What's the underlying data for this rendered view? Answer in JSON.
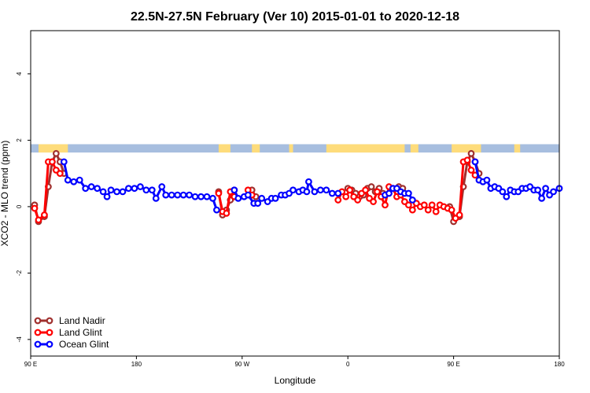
{
  "chart_data": {
    "type": "line",
    "title": "22.5N-27.5N February (Ver 10)   2015-01-01 to 2020-12-18",
    "xlabel": "Longitude",
    "ylabel": "XCO2 - MLO trend (ppm)",
    "xlim": [
      -90,
      180
    ],
    "ylim": [
      -4.5,
      5.3
    ],
    "grid": false,
    "legend_position": "bottom-left",
    "x_ticks": [
      {
        "value": -90,
        "label": "90 E"
      },
      {
        "value": -36,
        "label": "180"
      },
      {
        "value": 18,
        "label": "90 W"
      },
      {
        "value": 72,
        "label": "0"
      },
      {
        "value": 126,
        "label": "90 E"
      },
      {
        "value": 180,
        "label": "180"
      }
    ],
    "y_ticks": [
      {
        "value": -4,
        "label": "-4"
      },
      {
        "value": -2,
        "label": "-2"
      },
      {
        "value": 0,
        "label": "0"
      },
      {
        "value": 2,
        "label": "2"
      },
      {
        "value": 4,
        "label": "4"
      }
    ],
    "map_strip": {
      "y_range": [
        1.63,
        1.88
      ],
      "ocean_color": "#a7bedf",
      "land_color": "#fedc7b",
      "land_x_ranges": [
        [
          -86,
          -71
        ],
        [
          6,
          12
        ],
        [
          23,
          27
        ],
        [
          42,
          44
        ],
        [
          61,
          101
        ],
        [
          104,
          108
        ],
        [
          125,
          140
        ],
        [
          157,
          160
        ]
      ]
    },
    "series": [
      {
        "name": "Land Nadir",
        "color": "#a0302e",
        "points": [
          [
            -88,
            0.05
          ],
          [
            -86,
            -0.45
          ],
          [
            -83,
            -0.3
          ],
          [
            -81,
            0.6
          ],
          [
            -79,
            1.35
          ],
          [
            -77,
            1.6
          ],
          [
            -75,
            1.35
          ],
          [
            -73,
            1.0
          ],
          [
            6,
            0.45
          ],
          [
            8,
            -0.25
          ],
          [
            10,
            -0.1
          ],
          [
            12,
            0.2
          ],
          [
            14,
            0.5
          ],
          [
            23,
            0.5
          ],
          [
            25,
            0.3
          ],
          [
            72,
            0.55
          ],
          [
            74,
            0.5
          ],
          [
            76,
            0.4
          ],
          [
            78,
            0.3
          ],
          [
            80,
            0.35
          ],
          [
            82,
            0.55
          ],
          [
            84,
            0.6
          ],
          [
            86,
            0.45
          ],
          [
            88,
            0.55
          ],
          [
            90,
            0.4
          ],
          [
            98,
            0.6
          ],
          [
            100,
            0.55
          ],
          [
            124,
            0.0
          ],
          [
            126,
            -0.45
          ],
          [
            129,
            -0.3
          ],
          [
            131,
            0.6
          ],
          [
            133,
            1.35
          ],
          [
            135,
            1.6
          ],
          [
            137,
            1.35
          ],
          [
            139,
            1.0
          ]
        ]
      },
      {
        "name": "Land Glint",
        "color": "#ff0000",
        "points": [
          [
            -88,
            -0.05
          ],
          [
            -86,
            -0.4
          ],
          [
            -83,
            -0.25
          ],
          [
            -81,
            1.35
          ],
          [
            -79,
            1.35
          ],
          [
            -77,
            1.1
          ],
          [
            -75,
            1.0
          ],
          [
            6,
            0.4
          ],
          [
            8,
            -0.15
          ],
          [
            10,
            -0.2
          ],
          [
            12,
            0.45
          ],
          [
            14,
            0.3
          ],
          [
            21,
            0.5
          ],
          [
            23,
            0.35
          ],
          [
            67,
            0.2
          ],
          [
            69,
            0.45
          ],
          [
            71,
            0.3
          ],
          [
            73,
            0.5
          ],
          [
            75,
            0.3
          ],
          [
            77,
            0.2
          ],
          [
            79,
            0.4
          ],
          [
            81,
            0.5
          ],
          [
            83,
            0.25
          ],
          [
            85,
            0.15
          ],
          [
            87,
            0.45
          ],
          [
            89,
            0.3
          ],
          [
            91,
            0.05
          ],
          [
            93,
            0.6
          ],
          [
            95,
            0.55
          ],
          [
            97,
            0.3
          ],
          [
            99,
            0.35
          ],
          [
            101,
            0.15
          ],
          [
            103,
            0.05
          ],
          [
            105,
            -0.1
          ],
          [
            107,
            0.1
          ],
          [
            109,
            0.0
          ],
          [
            111,
            0.05
          ],
          [
            113,
            -0.1
          ],
          [
            115,
            0.05
          ],
          [
            117,
            -0.15
          ],
          [
            119,
            0.05
          ],
          [
            121,
            0.0
          ],
          [
            123,
            -0.05
          ],
          [
            125,
            -0.1
          ],
          [
            127,
            -0.35
          ],
          [
            129,
            -0.25
          ],
          [
            131,
            1.35
          ],
          [
            133,
            1.4
          ],
          [
            135,
            1.1
          ],
          [
            137,
            0.95
          ]
        ]
      },
      {
        "name": "Ocean Glint",
        "color": "#0000ff",
        "points": [
          [
            -73,
            1.35
          ],
          [
            -71,
            0.8
          ],
          [
            -68,
            0.75
          ],
          [
            -65,
            0.8
          ],
          [
            -62,
            0.55
          ],
          [
            -59,
            0.6
          ],
          [
            -56,
            0.55
          ],
          [
            -53,
            0.45
          ],
          [
            -51,
            0.3
          ],
          [
            -49,
            0.5
          ],
          [
            -46,
            0.45
          ],
          [
            -43,
            0.45
          ],
          [
            -40,
            0.55
          ],
          [
            -37,
            0.55
          ],
          [
            -34,
            0.6
          ],
          [
            -31,
            0.5
          ],
          [
            -28,
            0.5
          ],
          [
            -26,
            0.25
          ],
          [
            -23,
            0.6
          ],
          [
            -21,
            0.35
          ],
          [
            -18,
            0.35
          ],
          [
            -15,
            0.35
          ],
          [
            -12,
            0.35
          ],
          [
            -9,
            0.35
          ],
          [
            -6,
            0.3
          ],
          [
            -3,
            0.3
          ],
          [
            0,
            0.3
          ],
          [
            3,
            0.25
          ],
          [
            5,
            -0.1
          ],
          [
            14,
            0.5
          ],
          [
            16,
            0.25
          ],
          [
            19,
            0.3
          ],
          [
            21,
            0.35
          ],
          [
            24,
            0.1
          ],
          [
            26,
            0.1
          ],
          [
            28,
            0.25
          ],
          [
            31,
            0.15
          ],
          [
            33,
            0.25
          ],
          [
            35,
            0.25
          ],
          [
            38,
            0.35
          ],
          [
            40,
            0.35
          ],
          [
            42,
            0.4
          ],
          [
            44,
            0.5
          ],
          [
            47,
            0.45
          ],
          [
            49,
            0.5
          ],
          [
            51,
            0.45
          ],
          [
            52,
            0.75
          ],
          [
            55,
            0.45
          ],
          [
            58,
            0.5
          ],
          [
            61,
            0.5
          ],
          [
            64,
            0.4
          ],
          [
            67,
            0.4
          ],
          [
            91,
            0.35
          ],
          [
            93,
            0.4
          ],
          [
            95,
            0.55
          ],
          [
            97,
            0.55
          ],
          [
            99,
            0.45
          ],
          [
            101,
            0.4
          ],
          [
            103,
            0.4
          ],
          [
            105,
            0.2
          ],
          [
            137,
            1.35
          ],
          [
            139,
            0.8
          ],
          [
            141,
            0.75
          ],
          [
            143,
            0.8
          ],
          [
            145,
            0.55
          ],
          [
            147,
            0.6
          ],
          [
            149,
            0.55
          ],
          [
            151,
            0.45
          ],
          [
            153,
            0.3
          ],
          [
            155,
            0.5
          ],
          [
            157,
            0.45
          ],
          [
            159,
            0.45
          ],
          [
            161,
            0.55
          ],
          [
            163,
            0.55
          ],
          [
            165,
            0.6
          ],
          [
            167,
            0.5
          ],
          [
            169,
            0.5
          ],
          [
            171,
            0.25
          ],
          [
            173,
            0.55
          ],
          [
            175,
            0.35
          ],
          [
            177,
            0.45
          ],
          [
            180,
            0.55
          ]
        ]
      }
    ]
  }
}
